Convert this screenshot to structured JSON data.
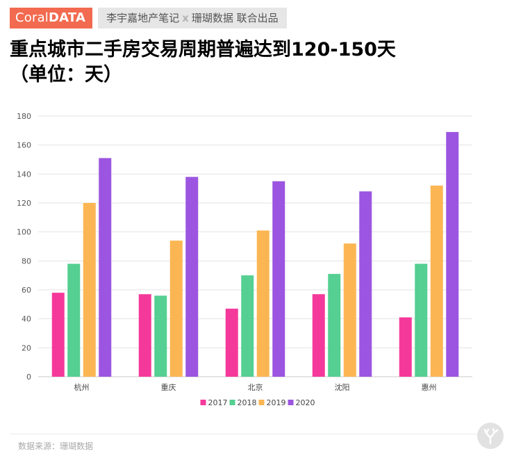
{
  "header": {
    "brand_light": "Coral",
    "brand_bold": "DATA",
    "tag_left": "李宇嘉地产笔记",
    "tag_sep": "x",
    "tag_right": "珊瑚数据 联合出品"
  },
  "title_line1": "重点城市二手房交易周期普遍达到120-150天",
  "title_line2": "（单位：天）",
  "source": "数据来源：珊瑚数据",
  "logo_icon": "coral-icon",
  "chart_data": {
    "type": "bar",
    "categories": [
      "杭州",
      "重庆",
      "北京",
      "沈阳",
      "惠州"
    ],
    "series": [
      {
        "name": "2017",
        "color": "#f5399b",
        "values": [
          58,
          57,
          47,
          57,
          41
        ]
      },
      {
        "name": "2018",
        "color": "#55cf92",
        "values": [
          78,
          56,
          70,
          71,
          78
        ]
      },
      {
        "name": "2019",
        "color": "#fbb653",
        "values": [
          120,
          94,
          101,
          92,
          132
        ]
      },
      {
        "name": "2020",
        "color": "#9c55e0",
        "values": [
          151,
          138,
          135,
          128,
          169
        ]
      }
    ],
    "yticks": [
      0,
      20,
      40,
      60,
      80,
      100,
      120,
      140,
      160,
      180
    ],
    "ylim": [
      0,
      180
    ],
    "grid": true,
    "legend": "bottom-center"
  }
}
